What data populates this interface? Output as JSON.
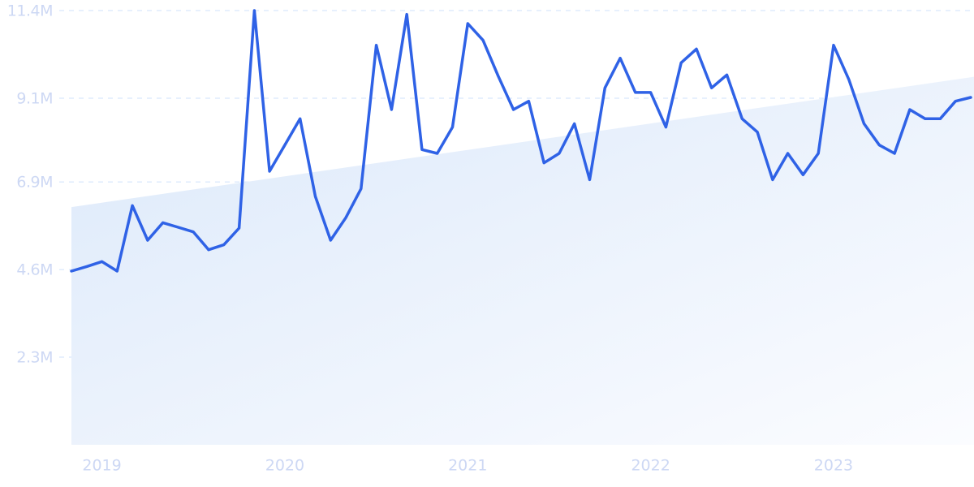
{
  "chart_data": {
    "type": "line",
    "title": "",
    "xlabel": "",
    "ylabel": "",
    "x_range": [
      "2018-11",
      "2023-10"
    ],
    "ylim": [
      0,
      11.4
    ],
    "y_unit": "M",
    "y_ticks": [
      2.3,
      4.6,
      6.9,
      9.1,
      11.4
    ],
    "y_tick_labels": [
      "2.3M",
      "4.6M",
      "6.9M",
      "9.1M",
      "11.4M"
    ],
    "x_tick_labels": [
      "2019",
      "2020",
      "2021",
      "2022",
      "2023"
    ],
    "x_tick_dates": [
      "2019-01",
      "2020-01",
      "2021-01",
      "2022-01",
      "2023-01"
    ],
    "grid": "horizontal dashed",
    "legend": "none",
    "x": [
      "2018-11",
      "2018-12",
      "2019-01",
      "2019-02",
      "2019-03",
      "2019-04",
      "2019-05",
      "2019-06",
      "2019-07",
      "2019-08",
      "2019-09",
      "2019-10",
      "2019-11",
      "2019-12",
      "2020-01",
      "2020-02",
      "2020-03",
      "2020-04",
      "2020-05",
      "2020-06",
      "2020-07",
      "2020-08",
      "2020-09",
      "2020-10",
      "2020-11",
      "2020-12",
      "2021-01",
      "2021-02",
      "2021-03",
      "2021-04",
      "2021-05",
      "2021-06",
      "2021-07",
      "2021-08",
      "2021-09",
      "2021-10",
      "2021-11",
      "2021-12",
      "2022-01",
      "2022-02",
      "2022-03",
      "2022-04",
      "2022-05",
      "2022-06",
      "2022-07",
      "2022-08",
      "2022-09",
      "2022-10",
      "2022-11",
      "2022-12",
      "2023-01",
      "2023-02",
      "2023-03",
      "2023-04",
      "2023-05",
      "2023-06",
      "2023-07",
      "2023-08",
      "2023-09",
      "2023-10"
    ],
    "series": [
      {
        "values": [
          4.56,
          4.68,
          4.81,
          4.56,
          6.28,
          5.37,
          5.83,
          5.71,
          5.59,
          5.12,
          5.25,
          5.69,
          11.4,
          7.18,
          7.87,
          8.56,
          6.52,
          5.37,
          5.96,
          6.72,
          10.49,
          8.8,
          11.3,
          7.75,
          7.65,
          8.34,
          11.06,
          10.62,
          9.68,
          8.8,
          9.02,
          7.4,
          7.65,
          8.43,
          6.96,
          9.37,
          10.15,
          9.25,
          9.25,
          8.34,
          10.03,
          10.39,
          9.37,
          9.71,
          8.56,
          8.21,
          6.96,
          7.65,
          7.09,
          7.65,
          10.49,
          9.59,
          8.43,
          7.87,
          7.65,
          8.8,
          8.56,
          8.56,
          9.02,
          9.12
        ],
        "color": "#2f62e6"
      }
    ],
    "trend": {
      "start": 6.24,
      "end": 9.66,
      "color": "#dce9fb"
    }
  }
}
